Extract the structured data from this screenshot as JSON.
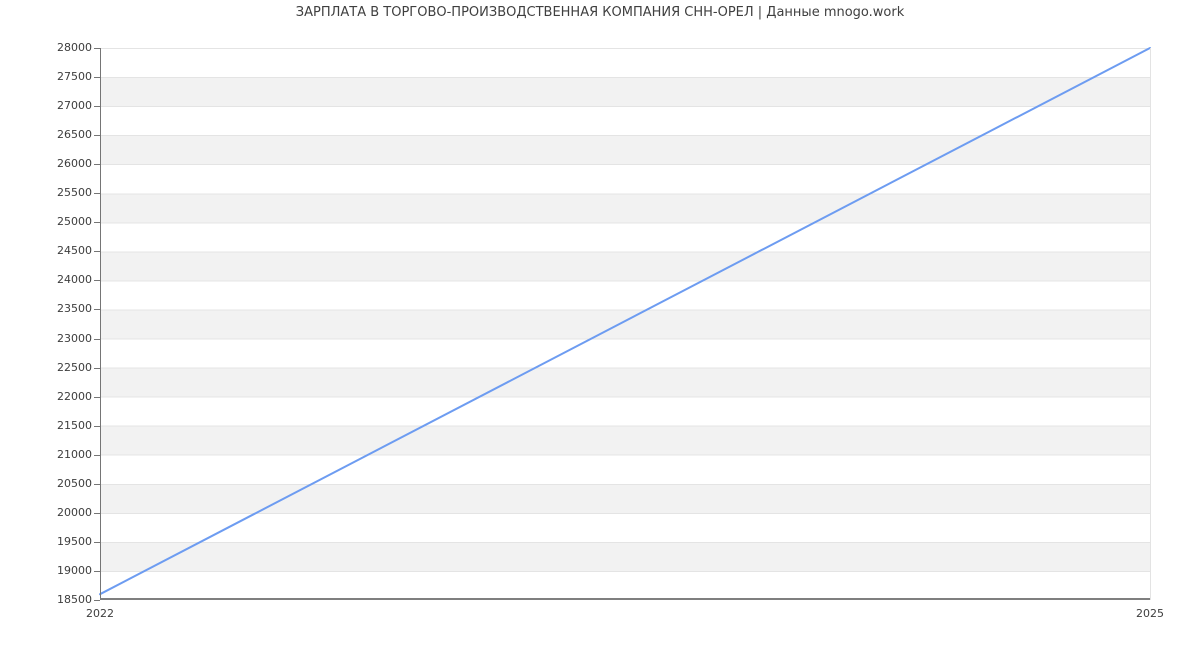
{
  "chart_data": {
    "type": "line",
    "title": "ЗАРПЛАТА В ТОРГОВО-ПРОИЗВОДСТВЕННАЯ КОМПАНИЯ СНН-ОРЕЛ | Данные mnogo.work",
    "x": [
      "2022",
      "2025"
    ],
    "series": [
      {
        "name": "",
        "values": [
          18600,
          28000
        ],
        "color": "#6d9cf1"
      }
    ],
    "ylim": [
      18500,
      28000
    ],
    "y_ticks": [
      28000,
      27500,
      27000,
      26500,
      26000,
      25500,
      25000,
      24500,
      24000,
      23500,
      23000,
      22500,
      22000,
      21500,
      21000,
      20500,
      20000,
      19500,
      19000,
      18500
    ],
    "xlabel": "",
    "ylabel": "",
    "legend": "none",
    "grid": "horizontal-stripes"
  },
  "colors": {
    "line": "#6d9cf1",
    "stripe": "#f2f2f2",
    "gridline": "#e4e4e4",
    "axis": "#757575",
    "text": "#3f3f3f",
    "background": "#ffffff"
  }
}
